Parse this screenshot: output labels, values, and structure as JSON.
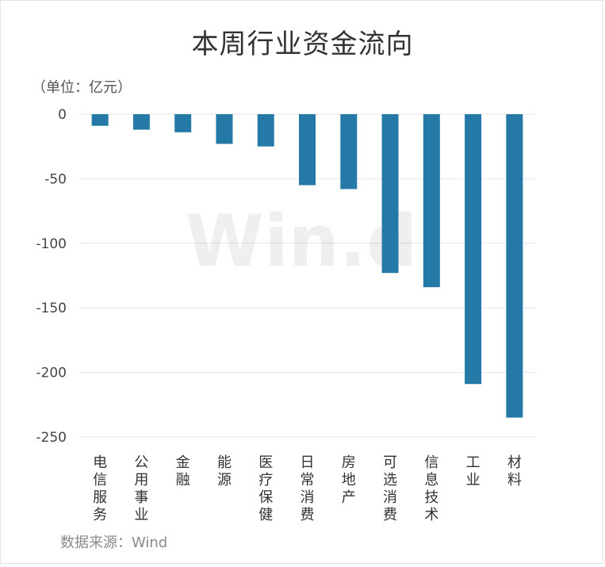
{
  "chart_data": {
    "type": "bar",
    "title": "本周行业资金流向",
    "unit_label": "（单位：亿元）",
    "source": "数据来源：Wind",
    "watermark": "Win.d",
    "categories": [
      "电信服务",
      "公用事业",
      "金融",
      "能源",
      "医疗保健",
      "日常消费",
      "房地产",
      "可选消费",
      "信息技术",
      "工业",
      "材料"
    ],
    "values": [
      -9,
      -12,
      -14,
      -23,
      -25,
      -55,
      -58,
      -123,
      -134,
      -209,
      -235
    ],
    "ylim": [
      -250,
      0
    ],
    "yticks": [
      0,
      -50,
      -100,
      -150,
      -200,
      -250
    ],
    "ytick_labels": [
      "0",
      "-50",
      "-100",
      "-150",
      "-200",
      "-250"
    ],
    "xlabel": "",
    "ylabel": "",
    "grid": true,
    "bar_color": "#2479a6"
  }
}
